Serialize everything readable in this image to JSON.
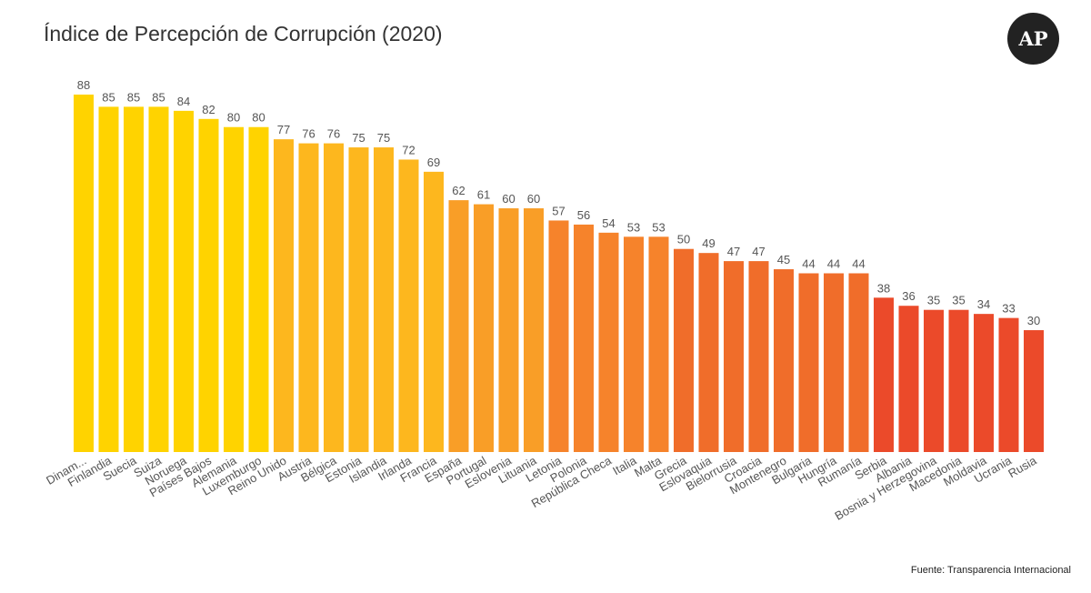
{
  "chart_data": {
    "type": "bar",
    "title": "Índice de Percepción de Corrupción (2020)",
    "categories": [
      "Dinam...",
      "Finlandia",
      "Suecia",
      "Suiza",
      "Noruega",
      "Países Bajos",
      "Alemania",
      "Luxemburgo",
      "Reino Unido",
      "Austria",
      "Bélgica",
      "Estonia",
      "Islandia",
      "Irlanda",
      "Francia",
      "España",
      "Portugal",
      "Eslovenia",
      "Lituania",
      "Letonia",
      "Polonia",
      "República Checa",
      "Italia",
      "Malta",
      "Grecia",
      "Eslovaquia",
      "Bielorrusia",
      "Croacia",
      "Montenegro",
      "Bulgaria",
      "Hungría",
      "Rumanía",
      "Serbia",
      "Albania",
      "Bosnia y Herzegovina",
      "Macedonia",
      "Moldavia",
      "Ucrania",
      "Rusia"
    ],
    "values": [
      88,
      85,
      85,
      85,
      84,
      82,
      80,
      80,
      77,
      76,
      76,
      75,
      75,
      72,
      69,
      62,
      61,
      60,
      60,
      57,
      56,
      54,
      53,
      53,
      50,
      49,
      47,
      47,
      45,
      44,
      44,
      44,
      38,
      36,
      35,
      35,
      34,
      33,
      30
    ],
    "colors": [
      "#FFD300",
      "#FFD300",
      "#FFD300",
      "#FFD300",
      "#FFD300",
      "#FFD300",
      "#FFD300",
      "#FFD300",
      "#FDB71E",
      "#FDB71E",
      "#FDB71E",
      "#FDB71E",
      "#FDB71E",
      "#FDB71E",
      "#FDB71E",
      "#F99E27",
      "#F99E27",
      "#F99E27",
      "#F99E27",
      "#F6832B",
      "#F6832B",
      "#F6832B",
      "#F6832B",
      "#F6832B",
      "#F06D2A",
      "#F06D2A",
      "#F06D2A",
      "#F06D2A",
      "#F06D2A",
      "#F06D2A",
      "#F06D2A",
      "#F06D2A",
      "#EB4A2A",
      "#EB4A2A",
      "#EB4A2A",
      "#EB4A2A",
      "#EB4A2A",
      "#EB4A2A",
      "#EB4A2A"
    ],
    "xlabel": "",
    "ylabel": "",
    "ylim": [
      0,
      88
    ],
    "grid": false,
    "data_labels": true
  },
  "source": "Fuente: Transparencia Internacional",
  "logo_text": "AP"
}
